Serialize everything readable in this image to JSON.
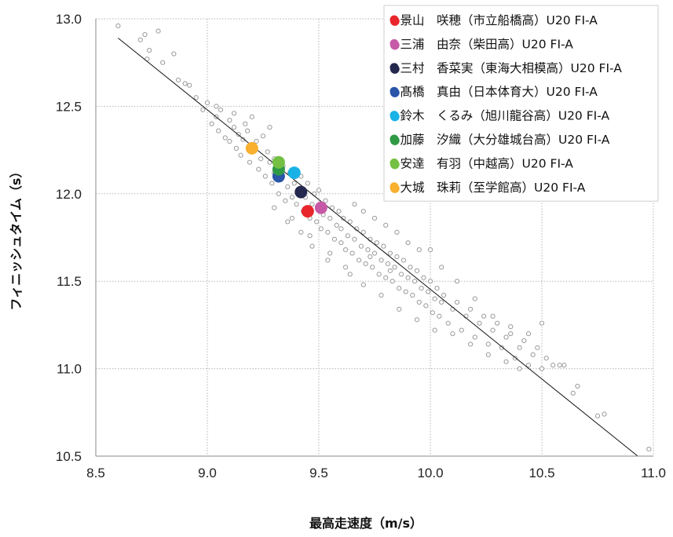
{
  "chart_data": {
    "type": "scatter",
    "xlabel": "最高走速度（m/s）",
    "ylabel": "フィニッシュタイム（s）",
    "xlim": [
      8.5,
      11.0
    ],
    "ylim": [
      10.5,
      13.0
    ],
    "x_ticks": [
      "8.5",
      "9.0",
      "9.5",
      "10.0",
      "10.5",
      "11.0"
    ],
    "y_ticks": [
      "10.5",
      "11.0",
      "11.5",
      "12.0",
      "12.5",
      "13.0"
    ],
    "grid": true,
    "legend_position": "top-right",
    "trend_line": {
      "x": [
        8.6,
        10.93
      ],
      "y": [
        12.89,
        10.5
      ]
    },
    "background_points": [
      [
        8.6,
        12.96
      ],
      [
        8.7,
        12.88
      ],
      [
        8.72,
        12.91
      ],
      [
        8.73,
        12.77
      ],
      [
        8.74,
        12.82
      ],
      [
        8.78,
        12.93
      ],
      [
        8.8,
        12.75
      ],
      [
        8.85,
        12.8
      ],
      [
        8.87,
        12.65
      ],
      [
        8.9,
        12.63
      ],
      [
        8.92,
        12.62
      ],
      [
        8.95,
        12.55
      ],
      [
        8.98,
        12.48
      ],
      [
        9.0,
        12.52
      ],
      [
        9.02,
        12.4
      ],
      [
        9.04,
        12.44
      ],
      [
        9.05,
        12.36
      ],
      [
        9.06,
        12.48
      ],
      [
        9.08,
        12.32
      ],
      [
        9.1,
        12.3
      ],
      [
        9.1,
        12.42
      ],
      [
        9.12,
        12.38
      ],
      [
        9.13,
        12.26
      ],
      [
        9.14,
        12.34
      ],
      [
        9.15,
        12.22
      ],
      [
        9.16,
        12.31
      ],
      [
        9.17,
        12.4
      ],
      [
        9.18,
        12.36
      ],
      [
        9.19,
        12.18
      ],
      [
        9.2,
        12.28
      ],
      [
        9.21,
        12.25
      ],
      [
        9.22,
        12.3
      ],
      [
        9.23,
        12.14
      ],
      [
        9.24,
        12.2
      ],
      [
        9.25,
        12.33
      ],
      [
        9.26,
        12.1
      ],
      [
        9.27,
        12.24
      ],
      [
        9.28,
        12.18
      ],
      [
        9.29,
        12.06
      ],
      [
        9.3,
        12.2
      ],
      [
        9.3,
        12.12
      ],
      [
        9.32,
        12.0
      ],
      [
        9.33,
        12.08
      ],
      [
        9.34,
        12.16
      ],
      [
        9.35,
        11.96
      ],
      [
        9.36,
        12.04
      ],
      [
        9.37,
        12.12
      ],
      [
        9.38,
        11.98
      ],
      [
        9.39,
        12.06
      ],
      [
        9.4,
        11.94
      ],
      [
        9.41,
        12.02
      ],
      [
        9.42,
        12.1
      ],
      [
        9.43,
        11.9
      ],
      [
        9.44,
        11.98
      ],
      [
        9.45,
        12.06
      ],
      [
        9.46,
        11.86
      ],
      [
        9.47,
        11.94
      ],
      [
        9.48,
        12.0
      ],
      [
        9.49,
        11.84
      ],
      [
        9.5,
        11.92
      ],
      [
        9.5,
        12.02
      ],
      [
        9.51,
        11.8
      ],
      [
        9.52,
        11.88
      ],
      [
        9.53,
        11.96
      ],
      [
        9.54,
        11.78
      ],
      [
        9.55,
        11.86
      ],
      [
        9.56,
        11.92
      ],
      [
        9.57,
        11.74
      ],
      [
        9.58,
        11.82
      ],
      [
        9.59,
        11.9
      ],
      [
        9.6,
        11.72
      ],
      [
        9.6,
        11.8
      ],
      [
        9.61,
        11.86
      ],
      [
        9.62,
        11.68
      ],
      [
        9.63,
        11.76
      ],
      [
        9.64,
        11.84
      ],
      [
        9.65,
        11.66
      ],
      [
        9.66,
        11.74
      ],
      [
        9.67,
        11.8
      ],
      [
        9.68,
        11.62
      ],
      [
        9.69,
        11.7
      ],
      [
        9.7,
        11.78
      ],
      [
        9.71,
        11.6
      ],
      [
        9.72,
        11.68
      ],
      [
        9.73,
        11.74
      ],
      [
        9.74,
        11.58
      ],
      [
        9.75,
        11.66
      ],
      [
        9.76,
        11.72
      ],
      [
        9.77,
        11.54
      ],
      [
        9.78,
        11.62
      ],
      [
        9.79,
        11.7
      ],
      [
        9.8,
        11.52
      ],
      [
        9.81,
        11.6
      ],
      [
        9.82,
        11.66
      ],
      [
        9.83,
        11.5
      ],
      [
        9.84,
        11.58
      ],
      [
        9.85,
        11.64
      ],
      [
        9.86,
        11.46
      ],
      [
        9.87,
        11.54
      ],
      [
        9.88,
        11.62
      ],
      [
        9.89,
        11.44
      ],
      [
        9.9,
        11.52
      ],
      [
        9.91,
        11.58
      ],
      [
        9.92,
        11.42
      ],
      [
        9.93,
        11.5
      ],
      [
        9.94,
        11.56
      ],
      [
        9.95,
        11.38
      ],
      [
        9.96,
        11.46
      ],
      [
        9.97,
        11.52
      ],
      [
        9.98,
        11.36
      ],
      [
        9.99,
        11.44
      ],
      [
        10.0,
        11.5
      ],
      [
        10.01,
        11.32
      ],
      [
        10.02,
        11.4
      ],
      [
        10.03,
        11.46
      ],
      [
        10.04,
        11.3
      ],
      [
        10.05,
        11.38
      ],
      [
        10.06,
        11.42
      ],
      [
        10.08,
        11.26
      ],
      [
        10.1,
        11.34
      ],
      [
        10.12,
        11.38
      ],
      [
        10.14,
        11.22
      ],
      [
        10.16,
        11.3
      ],
      [
        10.18,
        11.34
      ],
      [
        10.2,
        11.18
      ],
      [
        10.22,
        11.26
      ],
      [
        10.24,
        11.3
      ],
      [
        10.26,
        11.14
      ],
      [
        10.28,
        11.22
      ],
      [
        10.3,
        11.26
      ],
      [
        10.32,
        11.12
      ],
      [
        10.34,
        11.18
      ],
      [
        10.36,
        11.2
      ],
      [
        10.38,
        11.06
      ],
      [
        10.4,
        11.12
      ],
      [
        10.42,
        11.16
      ],
      [
        10.44,
        11.02
      ],
      [
        10.46,
        11.08
      ],
      [
        10.48,
        11.12
      ],
      [
        10.5,
        11.0
      ],
      [
        10.52,
        11.06
      ],
      [
        10.55,
        11.02
      ],
      [
        10.58,
        11.02
      ],
      [
        10.6,
        11.02
      ],
      [
        10.64,
        10.86
      ],
      [
        10.66,
        10.9
      ],
      [
        10.75,
        10.73
      ],
      [
        10.78,
        10.74
      ],
      [
        10.98,
        10.54
      ],
      [
        10.0,
        11.68
      ],
      [
        9.82,
        11.56
      ],
      [
        9.73,
        11.64
      ],
      [
        9.64,
        11.54
      ],
      [
        9.55,
        11.66
      ],
      [
        9.46,
        11.76
      ],
      [
        9.38,
        11.86
      ],
      [
        9.28,
        12.38
      ],
      [
        9.2,
        12.44
      ],
      [
        9.12,
        12.46
      ],
      [
        9.04,
        12.5
      ],
      [
        9.66,
        11.94
      ],
      [
        9.7,
        11.9
      ],
      [
        9.75,
        11.86
      ],
      [
        9.8,
        11.82
      ],
      [
        9.85,
        11.78
      ],
      [
        9.9,
        11.72
      ],
      [
        9.95,
        11.68
      ],
      [
        10.05,
        11.58
      ],
      [
        10.12,
        11.5
      ],
      [
        10.2,
        11.4
      ],
      [
        10.28,
        11.3
      ],
      [
        10.36,
        11.24
      ],
      [
        10.44,
        11.2
      ],
      [
        10.5,
        11.26
      ],
      [
        10.4,
        11.0
      ],
      [
        10.34,
        11.04
      ],
      [
        10.26,
        11.08
      ],
      [
        10.18,
        11.14
      ],
      [
        10.1,
        11.2
      ],
      [
        10.02,
        11.22
      ],
      [
        9.94,
        11.28
      ],
      [
        9.86,
        11.34
      ],
      [
        9.78,
        11.42
      ],
      [
        9.7,
        11.48
      ],
      [
        9.62,
        11.58
      ],
      [
        9.54,
        11.62
      ],
      [
        9.47,
        11.7
      ],
      [
        9.42,
        11.78
      ],
      [
        9.36,
        11.84
      ],
      [
        9.3,
        11.92
      ]
    ],
    "highlighted_points": [
      {
        "name": "景山　咲穂（市立船橋高）U20 FI-A",
        "x": 9.45,
        "y": 11.9,
        "color": "#e8262b"
      },
      {
        "name": "三浦　由奈（柴田高）U20 FI-A",
        "x": 9.51,
        "y": 11.92,
        "color": "#c75aa8"
      },
      {
        "name": "三村　香菜実（東海大相模高）U20 FI-A",
        "x": 9.42,
        "y": 12.01,
        "color": "#25284e"
      },
      {
        "name": "髙橋　真由（日本体育大）U20 FI-A",
        "x": 9.32,
        "y": 12.1,
        "color": "#2a55a8"
      },
      {
        "name": "鈴木　くるみ（旭川龍谷高）U20 FI-A",
        "x": 9.39,
        "y": 12.12,
        "color": "#19b2e6"
      },
      {
        "name": "加藤　汐織（大分雄城台高）U20 FI-A",
        "x": 9.32,
        "y": 12.14,
        "color": "#2f9a46"
      },
      {
        "name": "安達　有羽（中越高）U20 FI-A",
        "x": 9.32,
        "y": 12.18,
        "color": "#74c043"
      },
      {
        "name": "大城　珠莉（至学館高）U20 FI-A",
        "x": 9.2,
        "y": 12.26,
        "color": "#f8b02e"
      }
    ],
    "legend": [
      {
        "label": "●景山　咲穂（市立船橋高）U20 FI-A",
        "color": "#e8262b"
      },
      {
        "label": "●三浦　由奈（柴田高）U20 FI-A",
        "color": "#c75aa8"
      },
      {
        "label": "●三村　香菜実（東海大相模高）U20 FI-A",
        "color": "#25284e"
      },
      {
        "label": "●髙橋　真由（日本体育大）U20 FI-A",
        "color": "#2a55a8"
      },
      {
        "label": "●鈴木　くるみ（旭川龍谷高）U20 FI-A",
        "color": "#19b2e6"
      },
      {
        "label": "●加藤　汐織（大分雄城台高）U20 FI-A",
        "color": "#2f9a46"
      },
      {
        "label": "●安達　有羽（中越高）U20 FI-A",
        "color": "#74c043"
      },
      {
        "label": "●大城　珠莉（至学館高）U20 FI-A",
        "color": "#f8b02e"
      }
    ]
  }
}
